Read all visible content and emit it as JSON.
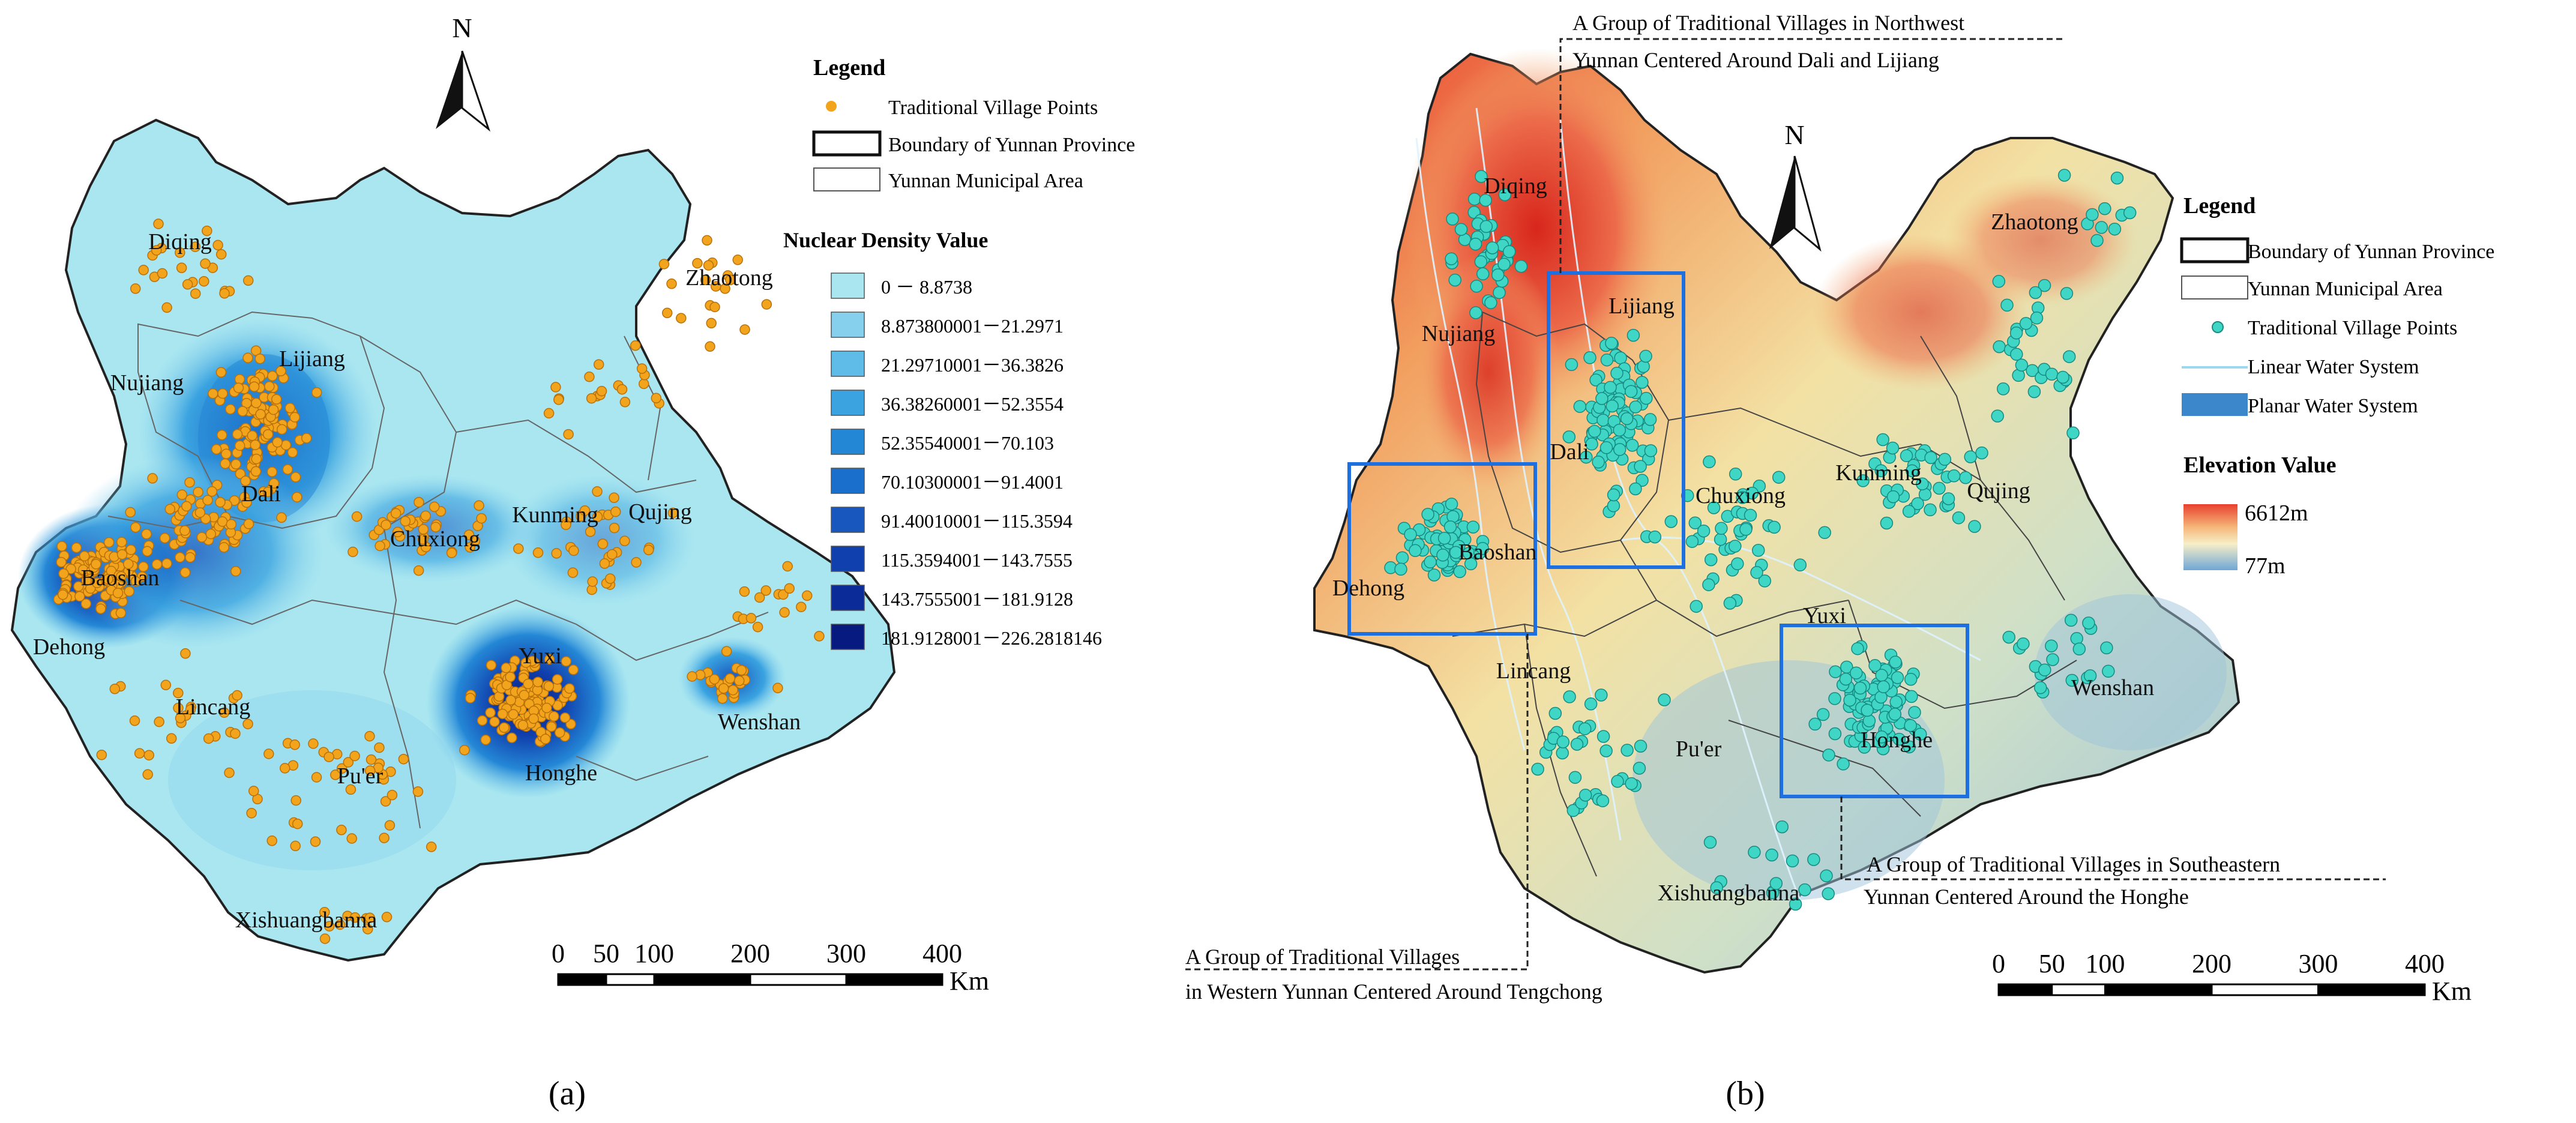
{
  "panel_a": {
    "caption": "(a)",
    "north": "N",
    "legend": {
      "title": "Legend",
      "items": [
        "Traditional Village Points",
        "Boundary of Yunnan Province",
        "Yunnan Municipal Area"
      ]
    },
    "density": {
      "title": "Nuclear Density Value",
      "classes": [
        {
          "label": "0 － 8.8738",
          "color": "#a9e6f0"
        },
        {
          "label": "8.873800001－21.2971",
          "color": "#86d0ee"
        },
        {
          "label": "21.29710001－36.3826",
          "color": "#5fbbe8"
        },
        {
          "label": "36.38260001－52.3554",
          "color": "#3aa3e0"
        },
        {
          "label": "52.35540001－70.103",
          "color": "#2487d6"
        },
        {
          "label": "70.10300001－91.4001",
          "color": "#1a6fcc"
        },
        {
          "label": "91.40010001－115.3594",
          "color": "#1757be"
        },
        {
          "label": "115.3594001－143.7555",
          "color": "#1040ad"
        },
        {
          "label": "143.7555001－181.9128",
          "color": "#0b2b98"
        },
        {
          "label": "181.9128001－226.2818146",
          "color": "#061a80"
        }
      ]
    },
    "places": [
      "Diqing",
      "Lijiang",
      "Nujiang",
      "Dali",
      "Zhaotong",
      "Baoshan",
      "Chuxiong",
      "Kunming",
      "Qujing",
      "Dehong",
      "Yuxi",
      "Lincang",
      "Honghe",
      "Wenshan",
      "Pu'er",
      "Xishuangbanna"
    ],
    "scale": {
      "ticks": [
        "0",
        "50",
        "100",
        "200",
        "300",
        "400"
      ],
      "unit": "Km"
    }
  },
  "panel_b": {
    "caption": "(b)",
    "north": "N",
    "legend": {
      "title": "Legend",
      "items": [
        "Boundary of Yunnan Province",
        "Yunnan Municipal Area",
        "Traditional Village Points",
        "Linear Water System",
        "Planar Water System"
      ]
    },
    "elevation": {
      "title": "Elevation Value",
      "max": "6612m",
      "min": "77m"
    },
    "places": [
      "Diqing",
      "Zhaotong",
      "Lijiang",
      "Nujiang",
      "Dali",
      "Chuxiong",
      "Kunming",
      "Qujing",
      "Baoshan",
      "Dehong",
      "Yuxi",
      "Lincang",
      "Wenshan",
      "Honghe",
      "Pu'er",
      "Xishuangbanna"
    ],
    "annotations": [
      {
        "line1": "A Group of Traditional Villages in Northwest",
        "line2": "Yunnan Centered Around Dali and Lijiang"
      },
      {
        "line1": "A Group of Traditional Villages",
        "line2": "in Western Yunnan Centered Around Tengchong"
      },
      {
        "line1": "A Group of Traditional Villages in Southeastern",
        "line2": "Yunnan Centered Around the Honghe"
      }
    ],
    "scale": {
      "ticks": [
        "0",
        "50",
        "100",
        "200",
        "300",
        "400"
      ],
      "unit": "Km"
    }
  },
  "colors": {
    "village_a": "#f2a51c",
    "village_b": "#3fd6c6",
    "box": "#1e6fe0"
  }
}
